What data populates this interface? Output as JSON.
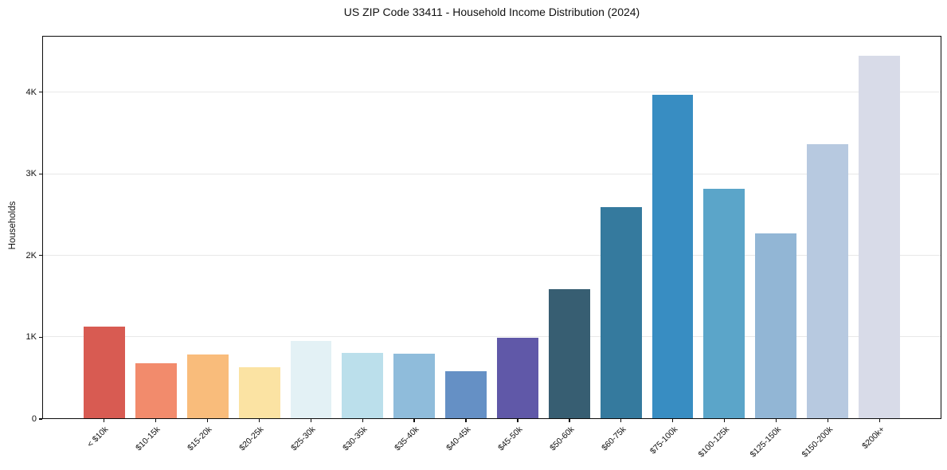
{
  "chart_data": {
    "type": "bar",
    "title": "US ZIP Code 33411 - Household Income Distribution (2024)",
    "xlabel": "",
    "ylabel": "Households",
    "categories": [
      "< $10k",
      "$10-15k",
      "$15-20k",
      "$20-25k",
      "$25-30k",
      "$30-35k",
      "$35-40k",
      "$40-45k",
      "$45-50k",
      "$50-60k",
      "$60-75k",
      "$75-100k",
      "$100-125k",
      "$125-150k",
      "$150-200k",
      "$200k+"
    ],
    "values": [
      1130,
      680,
      780,
      630,
      950,
      800,
      790,
      575,
      990,
      1590,
      2590,
      3980,
      2820,
      2270,
      3370,
      4460
    ],
    "bar_colors": [
      "#d85b52",
      "#f28b6c",
      "#f9bc7b",
      "#fbe3a3",
      "#e3f1f5",
      "#bbdfeb",
      "#8fbcdb",
      "#6590c5",
      "#6058a8",
      "#375e72",
      "#357a9e",
      "#388dc2",
      "#5ba5c9",
      "#92b6d5",
      "#b7c9e0",
      "#d8dbe8"
    ],
    "ylim": [
      0,
      4690
    ],
    "ytick_values": [
      0,
      1000,
      2000,
      3000,
      4000
    ],
    "ytick_labels": [
      "0",
      "1K",
      "2K",
      "3K",
      "4K"
    ],
    "grid": "horizontal",
    "grid_color": "#e8e8e8",
    "legend": "none",
    "bar_width_units": 0.8,
    "x_padding_units": 1.19
  }
}
